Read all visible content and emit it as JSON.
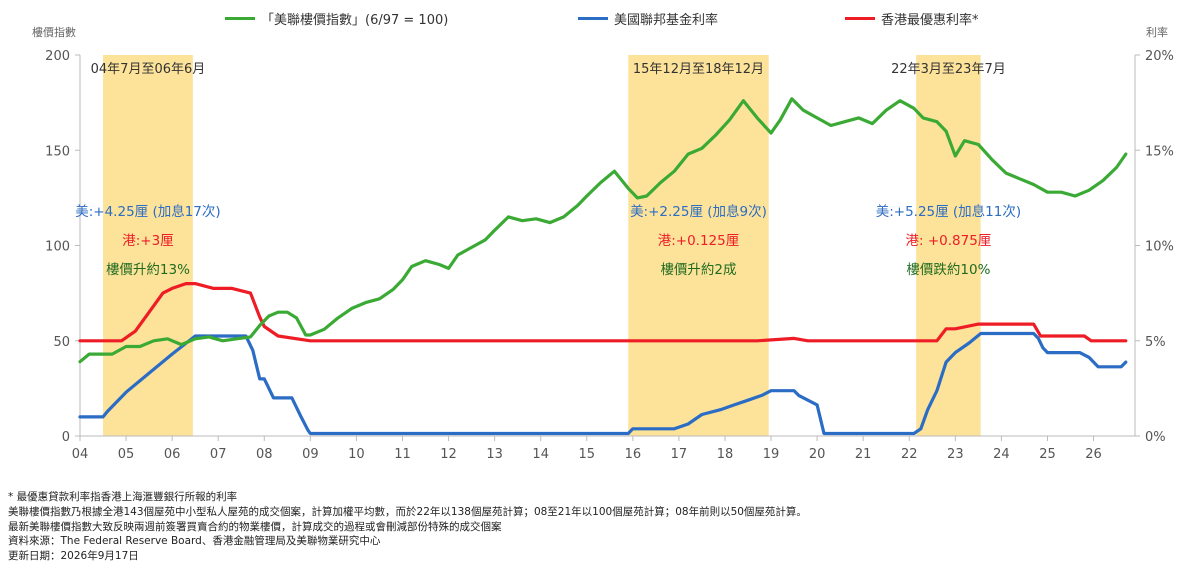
{
  "legend": [
    {
      "label": "「美聯樓價指數」(6/97 = 100)",
      "color": "#3aaa35"
    },
    {
      "label": "美國聯邦基金利率",
      "color": "#2b6cc4"
    },
    {
      "label": "香港最優惠利率*",
      "color": "#ee1c25"
    }
  ],
  "axis_titles": {
    "left": "樓價指數",
    "right": "利率"
  },
  "chart_data": {
    "type": "line",
    "x_unit": "year",
    "x_ticks": [
      "04",
      "05",
      "06",
      "07",
      "08",
      "09",
      "10",
      "11",
      "12",
      "13",
      "14",
      "15",
      "16",
      "17",
      "18",
      "19",
      "20",
      "21",
      "22",
      "23",
      "24",
      "25",
      "26"
    ],
    "xlim": [
      2004,
      2026.9
    ],
    "y_left": {
      "label": "樓價指數",
      "lim": [
        0,
        200
      ],
      "ticks": [
        "0",
        "50",
        "100",
        "150",
        "200"
      ]
    },
    "y_right": {
      "label": "利率",
      "lim": [
        0,
        20
      ],
      "ticks": [
        "0%",
        "5%",
        "10%",
        "15%",
        "20%"
      ]
    },
    "grid": false,
    "legend_position": "top",
    "shaded_periods": [
      {
        "label": "04年7月至06年6月",
        "start": 2004.5,
        "end": 2006.45
      },
      {
        "label": "15年12月至18年12月",
        "start": 2015.9,
        "end": 2018.95
      },
      {
        "label": "22年3月至23年7月",
        "start": 2022.15,
        "end": 2023.55
      }
    ],
    "annotations": [
      {
        "lines": [
          {
            "text": "美:+4.25厘 (加息17次)",
            "color": "#2b6cc4"
          },
          {
            "text": "港:+3厘",
            "color": "#ee1c25"
          },
          {
            "text": "樓價升約13%",
            "color": "#1f6b1f"
          }
        ]
      },
      {
        "lines": [
          {
            "text": "美:+2.25厘 (加息9次)",
            "color": "#2b6cc4"
          },
          {
            "text": "港:+0.125厘",
            "color": "#ee1c25"
          },
          {
            "text": "樓價升約2成",
            "color": "#1f6b1f"
          }
        ]
      },
      {
        "lines": [
          {
            "text": "美:+5.25厘 (加息11次)",
            "color": "#2b6cc4"
          },
          {
            "text": "港: +0.875厘",
            "color": "#ee1c25"
          },
          {
            "text": "樓價跌約10%",
            "color": "#1f6b1f"
          }
        ]
      }
    ],
    "series": [
      {
        "name": "「美聯樓價指數」(6/97 = 100)",
        "axis": "left",
        "color": "#3aaa35",
        "x": [
          2004.0,
          2004.2,
          2004.5,
          2004.7,
          2005.0,
          2005.3,
          2005.6,
          2005.9,
          2006.2,
          2006.5,
          2006.8,
          2007.1,
          2007.4,
          2007.7,
          2007.9,
          2008.1,
          2008.3,
          2008.5,
          2008.7,
          2008.9,
          2009.0,
          2009.3,
          2009.6,
          2009.9,
          2010.2,
          2010.5,
          2010.8,
          2011.0,
          2011.2,
          2011.5,
          2011.8,
          2012.0,
          2012.2,
          2012.5,
          2012.8,
          2013.0,
          2013.3,
          2013.6,
          2013.9,
          2014.2,
          2014.5,
          2014.8,
          2015.0,
          2015.3,
          2015.6,
          2015.9,
          2016.1,
          2016.3,
          2016.6,
          2016.9,
          2017.2,
          2017.5,
          2017.8,
          2018.1,
          2018.4,
          2018.7,
          2019.0,
          2019.2,
          2019.45,
          2019.7,
          2020.0,
          2020.3,
          2020.6,
          2020.9,
          2021.2,
          2021.5,
          2021.8,
          2022.1,
          2022.3,
          2022.6,
          2022.8,
          2023.0,
          2023.2,
          2023.5,
          2023.8,
          2024.1,
          2024.4,
          2024.7,
          2025.0,
          2025.3,
          2025.6,
          2025.9,
          2026.2,
          2026.5,
          2026.7
        ],
        "y": [
          39,
          43,
          43,
          43,
          47,
          47,
          50,
          51,
          48,
          51,
          52,
          50,
          51,
          52,
          58,
          63,
          65,
          65,
          62,
          53,
          53,
          56,
          62,
          67,
          70,
          72,
          77,
          82,
          89,
          92,
          90,
          88,
          95,
          99,
          103,
          108,
          115,
          113,
          114,
          112,
          115,
          121,
          126,
          133,
          139,
          130,
          125,
          126,
          133,
          139,
          148,
          151,
          158,
          166,
          176,
          167,
          159,
          166,
          177,
          171,
          167,
          163,
          165,
          167,
          164,
          171,
          176,
          172,
          167,
          165,
          160,
          147,
          155,
          153,
          145,
          138,
          135,
          132,
          128,
          128,
          126,
          129,
          134,
          141,
          148
        ],
        "y_unit": "index"
      },
      {
        "name": "美國聯邦基金利率",
        "axis": "right",
        "color": "#2b6cc4",
        "x": [
          2004.0,
          2004.5,
          2004.6,
          2005.0,
          2005.5,
          2006.0,
          2006.5,
          2007.0,
          2007.6,
          2007.75,
          2007.9,
          2008.0,
          2008.2,
          2008.6,
          2008.8,
          2008.95,
          2009.0,
          2015.9,
          2016.0,
          2016.9,
          2017.2,
          2017.5,
          2017.9,
          2018.2,
          2018.5,
          2018.8,
          2019.0,
          2019.5,
          2019.6,
          2019.8,
          2020.0,
          2020.15,
          2020.2,
          2022.1,
          2022.25,
          2022.4,
          2022.6,
          2022.8,
          2023.0,
          2023.3,
          2023.55,
          2024.7,
          2024.8,
          2024.9,
          2025.0,
          2025.7,
          2025.9,
          2026.1,
          2026.6,
          2026.7
        ],
        "y": [
          1.0,
          1.0,
          1.3,
          2.3,
          3.3,
          4.3,
          5.25,
          5.25,
          5.25,
          4.5,
          3.0,
          3.0,
          2.0,
          2.0,
          1.0,
          0.3,
          0.13,
          0.13,
          0.38,
          0.38,
          0.63,
          1.13,
          1.38,
          1.63,
          1.88,
          2.13,
          2.38,
          2.38,
          2.13,
          1.88,
          1.63,
          0.13,
          0.13,
          0.13,
          0.38,
          1.38,
          2.38,
          3.88,
          4.38,
          4.88,
          5.38,
          5.38,
          5.13,
          4.63,
          4.38,
          4.38,
          4.13,
          3.63,
          3.63,
          3.88
        ],
        "y_unit": "%"
      },
      {
        "name": "香港最優惠利率*",
        "axis": "right",
        "color": "#ee1c25",
        "x": [
          2004.0,
          2004.5,
          2004.9,
          2005.2,
          2005.5,
          2005.8,
          2006.0,
          2006.3,
          2006.5,
          2006.9,
          2007.3,
          2007.7,
          2007.9,
          2008.0,
          2008.3,
          2009.0,
          2018.7,
          2019.5,
          2019.8,
          2022.6,
          2022.8,
          2023.0,
          2023.5,
          2024.7,
          2024.85,
          2025.8,
          2025.95,
          2026.7
        ],
        "y": [
          5.0,
          5.0,
          5.0,
          5.5,
          6.5,
          7.5,
          7.75,
          8.0,
          8.0,
          7.75,
          7.75,
          7.5,
          6.25,
          5.75,
          5.25,
          5.0,
          5.0,
          5.125,
          5.0,
          5.0,
          5.625,
          5.625,
          5.875,
          5.875,
          5.25,
          5.25,
          5.0,
          5.0
        ],
        "y_unit": "%"
      }
    ]
  },
  "footnotes": [
    "* 最優惠貸款利率指香港上海滙豐銀行所報的利率",
    "美聯樓價指數乃根據全港143個屋苑中小型私人屋苑的成交個案，計算加權平均數，而於22年以138個屋苑計算；08至21年以100個屋苑計算；08年前則以50個屋苑計算。",
    "最新美聯樓價指數大致反映兩週前簽署買賣合約的物業樓價，計算成交的過程或會刪減部份特殊的成交個案",
    "資料來源：The Federal Reserve Board、香港金融管理局及美聯物業研究中心",
    "更新日期：2026年9月17日"
  ]
}
